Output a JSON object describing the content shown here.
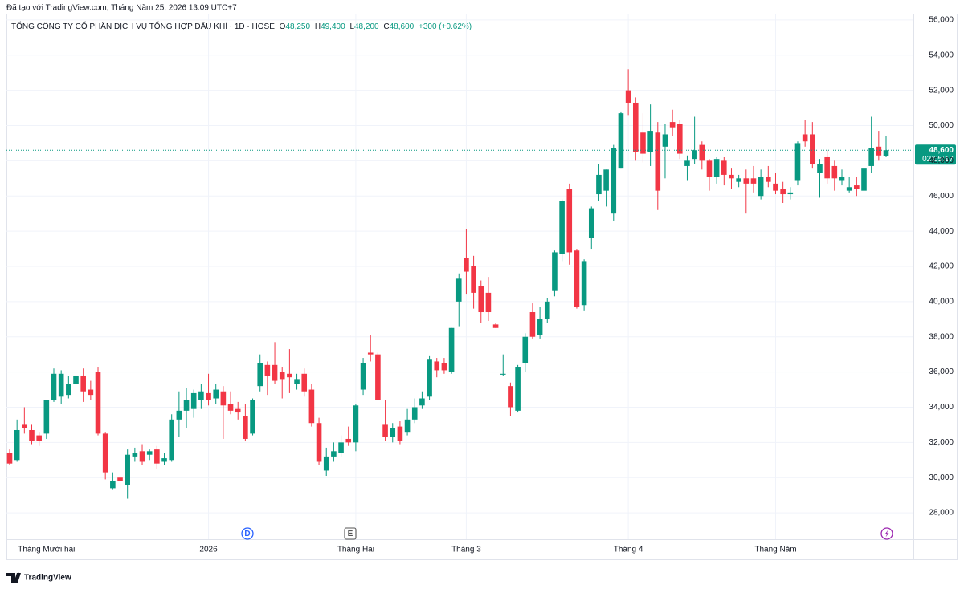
{
  "header": {
    "created": "Đã tạo với TradingView.com, Tháng Năm 25, 2026 13:09 UTC+7",
    "symbol": "TỔNG CÔNG TY CỔ PHẦN DỊCH VỤ TỔNG HỢP DẦU KHÍ · 1D · HOSE",
    "ohlc_legend": [
      {
        "key": "O",
        "value": "48,250"
      },
      {
        "key": "H",
        "value": "49,400"
      },
      {
        "key": "L",
        "value": "48,200"
      },
      {
        "key": "C",
        "value": "48,600"
      }
    ],
    "change": "+300 (+0.62%)"
  },
  "chart_data": {
    "type": "candlestick",
    "up_color": "#089981",
    "down_color": "#f23645",
    "grid": true,
    "categories": [
      null,
      null,
      null,
      null,
      null,
      "Tháng Mười hai",
      null,
      null,
      null,
      null,
      null,
      null,
      null,
      null,
      null,
      null,
      null,
      null,
      null,
      null,
      null,
      null,
      null,
      null,
      null,
      null,
      null,
      "2026",
      null,
      null,
      null,
      null,
      null,
      null,
      null,
      null,
      null,
      null,
      null,
      null,
      null,
      null,
      null,
      null,
      null,
      null,
      null,
      "Tháng Hai",
      null,
      null,
      null,
      null,
      null,
      null,
      null,
      null,
      null,
      null,
      null,
      null,
      null,
      null,
      "Tháng 3",
      null,
      null,
      null,
      null,
      null,
      null,
      null,
      null,
      null,
      null,
      null,
      null,
      null,
      null,
      null,
      null,
      null,
      null,
      null,
      null,
      null,
      "Tháng 4",
      null,
      null,
      null,
      null,
      null,
      null,
      null,
      null,
      null,
      null,
      null,
      null,
      null,
      null,
      null,
      null,
      null,
      null,
      null,
      "Tháng Năm",
      null,
      null,
      null,
      null,
      null,
      null,
      null,
      null,
      null,
      null,
      null,
      null,
      null,
      null,
      null
    ],
    "open": [
      31400,
      31000,
      33000,
      32700,
      32400,
      32500,
      34400,
      34600,
      34700,
      35300,
      35800,
      35000,
      36000,
      32500,
      29400,
      30000,
      29600,
      31200,
      31500,
      31300,
      31600,
      30900,
      31000,
      33300,
      33800,
      33900,
      34400,
      34800,
      34500,
      34900,
      34200,
      33900,
      33500,
      32500,
      35200,
      36400,
      36400,
      36000,
      35900,
      35300,
      35900,
      35000,
      33100,
      30400,
      31200,
      31400,
      32200,
      32000,
      35000,
      37100,
      37000,
      33000,
      32300,
      32900,
      32600,
      33300,
      34100,
      34600,
      36600,
      36500,
      36000,
      40000,
      42500,
      42000,
      40900,
      40500,
      38700,
      35850,
      35200,
      33800,
      36500,
      39400,
      38100,
      39000,
      40600,
      42700,
      46400,
      42900,
      39800,
      43600,
      46100,
      46300,
      45000,
      47600,
      52000,
      51300,
      49600,
      48500,
      49600,
      48800,
      50200,
      50100,
      47700,
      48100,
      48900,
      48000,
      47100,
      48000,
      47200,
      46800,
      47000,
      47000,
      46000,
      47100,
      46700,
      46400,
      46100,
      46900,
      49500,
      49500,
      47300,
      48200,
      47700,
      46900,
      46300,
      46600,
      46300,
      47700,
      48800,
      48250
    ],
    "high": [
      31600,
      33300,
      34000,
      33000,
      32600,
      34400,
      36200,
      36100,
      35800,
      36800,
      36200,
      35500,
      36300,
      32600,
      30300,
      30100,
      31600,
      31700,
      31900,
      31600,
      31800,
      31400,
      33600,
      34900,
      35100,
      35000,
      35300,
      35900,
      35300,
      35200,
      34900,
      34300,
      34200,
      34500,
      37000,
      36600,
      37700,
      36300,
      37300,
      35900,
      36200,
      35300,
      33400,
      31700,
      32000,
      32400,
      32900,
      34200,
      36800,
      38100,
      37100,
      34400,
      33100,
      33200,
      33900,
      34500,
      34900,
      36900,
      36800,
      36800,
      38500,
      41600,
      44100,
      42600,
      41200,
      41400,
      38800,
      37000,
      35400,
      36400,
      38200,
      39900,
      39700,
      40200,
      42900,
      45800,
      46700,
      43000,
      42400,
      45400,
      47800,
      47500,
      48900,
      50800,
      53200,
      51600,
      50700,
      51200,
      50200,
      50100,
      50900,
      50300,
      48300,
      50500,
      49100,
      48100,
      48200,
      48200,
      47600,
      47200,
      47500,
      47700,
      47500,
      47700,
      47300,
      46800,
      46500,
      49100,
      50300,
      50200,
      48100,
      48600,
      48000,
      47500,
      47100,
      47100,
      47800,
      50500,
      49700,
      49400
    ],
    "low": [
      30700,
      30900,
      32500,
      31900,
      31800,
      32200,
      34300,
      34200,
      34500,
      34700,
      34300,
      34400,
      32400,
      29900,
      29300,
      29400,
      28800,
      30900,
      30700,
      31000,
      30500,
      30700,
      30900,
      32300,
      32800,
      33400,
      33900,
      34100,
      34200,
      32200,
      33600,
      33300,
      32100,
      32400,
      34900,
      34700,
      35300,
      34500,
      34800,
      35000,
      34600,
      32900,
      30700,
      30100,
      30900,
      31200,
      31800,
      31500,
      34700,
      36600,
      34400,
      32100,
      32000,
      31900,
      32400,
      33100,
      33900,
      34400,
      35700,
      35900,
      35900,
      38600,
      40400,
      39600,
      38800,
      38900,
      38500,
      35800,
      33500,
      33700,
      36000,
      37900,
      37900,
      38800,
      40300,
      42300,
      42100,
      39600,
      39500,
      43000,
      45700,
      45400,
      44600,
      47600,
      50600,
      48000,
      47900,
      47700,
      45200,
      47000,
      49400,
      48100,
      46900,
      47800,
      47500,
      46300,
      46700,
      46600,
      46400,
      46500,
      45000,
      46200,
      45800,
      46500,
      46100,
      45600,
      45800,
      46600,
      48800,
      47600,
      45900,
      46700,
      46300,
      46600,
      46200,
      46000,
      45600,
      47300,
      48000,
      48200
    ],
    "close": [
      30800,
      32700,
      32800,
      32100,
      32100,
      34400,
      35900,
      35900,
      35300,
      35800,
      34900,
      34700,
      32500,
      30300,
      29800,
      29800,
      31300,
      31400,
      30900,
      31500,
      30800,
      31100,
      33300,
      33800,
      34400,
      34800,
      34900,
      34400,
      35000,
      34100,
      33800,
      33700,
      32200,
      34400,
      36500,
      35800,
      35500,
      35600,
      35700,
      35600,
      34900,
      33100,
      30900,
      31200,
      31500,
      32000,
      32000,
      34100,
      36500,
      37000,
      34400,
      32300,
      32800,
      32100,
      33300,
      34000,
      34500,
      36700,
      36100,
      36100,
      38500,
      41300,
      41700,
      40500,
      39400,
      39400,
      38500,
      35900,
      34000,
      36300,
      38000,
      38000,
      39000,
      40000,
      42800,
      45700,
      42800,
      39700,
      42300,
      45300,
      47200,
      47500,
      48700,
      50700,
      51300,
      48500,
      48400,
      49700,
      46300,
      49500,
      49900,
      48400,
      48000,
      48600,
      48000,
      47100,
      48100,
      47200,
      47000,
      47000,
      46700,
      46700,
      47100,
      46800,
      46300,
      46100,
      46200,
      49000,
      49100,
      47800,
      47800,
      47000,
      47000,
      47100,
      46500,
      46400,
      47600,
      48700,
      48300,
      48600
    ],
    "ylim": [
      26500,
      56450
    ],
    "yticks": [
      {
        "value": 28000,
        "label": "28,000"
      },
      {
        "value": 30000,
        "label": "30,000"
      },
      {
        "value": 32000,
        "label": "32,000"
      },
      {
        "value": 34000,
        "label": "34,000"
      },
      {
        "value": 36000,
        "label": "36,000"
      },
      {
        "value": 38000,
        "label": "38,000"
      },
      {
        "value": 40000,
        "label": "40,000"
      },
      {
        "value": 42000,
        "label": "42,000"
      },
      {
        "value": 44000,
        "label": "44,000"
      },
      {
        "value": 46000,
        "label": "46,000"
      },
      {
        "value": 48000,
        "label": "48,000"
      },
      {
        "value": 50000,
        "label": "50,000"
      },
      {
        "value": 52000,
        "label": "52,000"
      },
      {
        "value": 54000,
        "label": "54,000"
      },
      {
        "value": 56000,
        "label": "56,000"
      }
    ],
    "last_price": {
      "value": 48600,
      "label": "48,600"
    },
    "countdown": "02:05:17",
    "events": [
      {
        "label": "D",
        "color": "#2962ff"
      },
      {
        "label": "E",
        "color": "#555555"
      }
    ]
  },
  "footer": {
    "brand": "TradingView"
  }
}
